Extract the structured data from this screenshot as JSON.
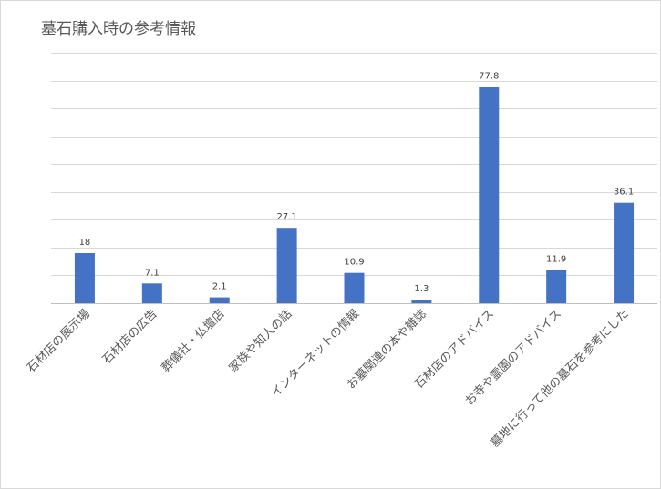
{
  "chart_data": {
    "type": "bar",
    "title": "墓石購入時の参考情報",
    "categories": [
      "石材店の展示場",
      "石材店の広告",
      "葬儀社・仏壇店",
      "家族や知人の話",
      "インターネットの情報",
      "お墓関連の本や雑誌",
      "石材店のアドバイス",
      "お寺や霊園のアドバイス",
      "墓地に行って他の墓石を参考にした"
    ],
    "values": [
      18,
      7.1,
      2.1,
      27.1,
      10.9,
      1.3,
      77.8,
      11.9,
      36.1
    ],
    "value_labels": [
      "18",
      "7.1",
      "2.1",
      "27.1",
      "10.9",
      "1.3",
      "77.8",
      "11.9",
      "36.1"
    ],
    "ylim": [
      0,
      90
    ],
    "gridlines": true,
    "bar_color": "#4472c4",
    "legend": "none"
  }
}
